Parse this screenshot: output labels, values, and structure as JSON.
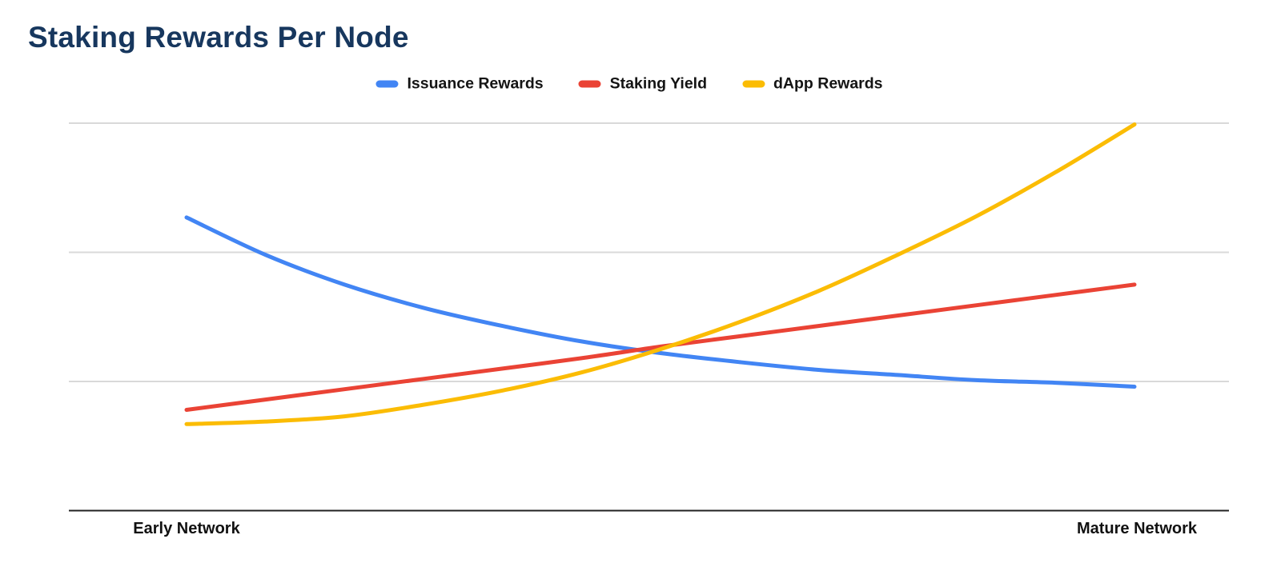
{
  "chart_data": {
    "type": "line",
    "title": "Staking Rewards Per Node",
    "title_color": "#17375e",
    "x_categories": [
      "Early Network",
      "Mature Network"
    ],
    "x_note": "13 evenly spaced samples between the two labeled endpoints; no intermediate tick labels shown",
    "y_axis": {
      "tick_labels_visible": false,
      "units": "relative reward level (estimated from unlabeled gridlines at 1, 2, 3)",
      "ylim": [
        0,
        3.2
      ],
      "gridline_values": [
        1,
        2,
        3
      ]
    },
    "grid": true,
    "gridline_color": "#d9d9d9",
    "axis_color": "#212121",
    "legend_position": "top-center",
    "series": [
      {
        "name": "Issuance Rewards",
        "color": "#4285f4",
        "trend": "starts high, decays and flattens toward a floor",
        "values": [
          2.27,
          1.98,
          1.75,
          1.57,
          1.43,
          1.31,
          1.22,
          1.15,
          1.09,
          1.05,
          1.01,
          0.99,
          0.96
        ]
      },
      {
        "name": "Staking Yield",
        "color": "#ea4335",
        "trend": "steady linear increase",
        "values": [
          0.78,
          0.86,
          0.94,
          1.02,
          1.1,
          1.18,
          1.27,
          1.35,
          1.43,
          1.51,
          1.59,
          1.67,
          1.75
        ]
      },
      {
        "name": "dApp Rewards",
        "color": "#fbbc04",
        "trend": "accelerating convex increase, ends highest",
        "values": [
          0.67,
          0.69,
          0.73,
          0.82,
          0.93,
          1.07,
          1.25,
          1.46,
          1.7,
          1.98,
          2.28,
          2.62,
          2.99
        ]
      }
    ],
    "crossover_note": "all three series cross near the horizontal midpoint at a relative level of about 1.25"
  }
}
